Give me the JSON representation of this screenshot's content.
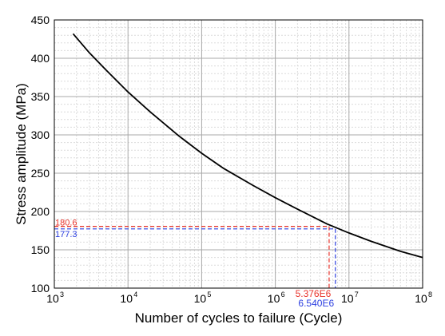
{
  "chart_data": {
    "type": "line",
    "xlabel": "Number of cycles to failure (Cycle)",
    "ylabel": "Stress amplitude (MPa)",
    "x_scale": "log",
    "xlim": [
      1000,
      100000000
    ],
    "ylim": [
      100,
      450
    ],
    "grid": true,
    "x_ticks": [
      {
        "base": "10",
        "exp": "3"
      },
      {
        "base": "10",
        "exp": "4"
      },
      {
        "base": "10",
        "exp": "5"
      },
      {
        "base": "10",
        "exp": "6"
      },
      {
        "base": "10",
        "exp": "7"
      },
      {
        "base": "10",
        "exp": "8"
      }
    ],
    "y_ticks": [
      "100",
      "150",
      "200",
      "250",
      "300",
      "350",
      "400",
      "450"
    ],
    "series": [
      {
        "color": "#000000",
        "x": [
          1800,
          3000,
          5000,
          10000,
          20000,
          50000,
          100000,
          200000,
          500000,
          1000000,
          2000000,
          5000000,
          10000000,
          20000000,
          50000000,
          100000000
        ],
        "y": [
          432,
          407,
          385,
          356,
          330,
          298,
          276,
          256,
          234,
          218,
          203,
          184,
          172,
          161,
          148,
          140
        ]
      }
    ],
    "markers": [
      {
        "x": 5376000,
        "y": 180.6,
        "x_label": "5.376E6",
        "y_label": "180.6",
        "color": "#e8322a"
      },
      {
        "x": 6540000,
        "y": 177.3,
        "x_label": "6.540E6",
        "y_label": "177.3",
        "color": "#2b3ee0"
      }
    ],
    "colors": {
      "grid_major": "#a8a8a8",
      "grid_minor": "#dcdcdc",
      "axis": "#000000"
    }
  }
}
